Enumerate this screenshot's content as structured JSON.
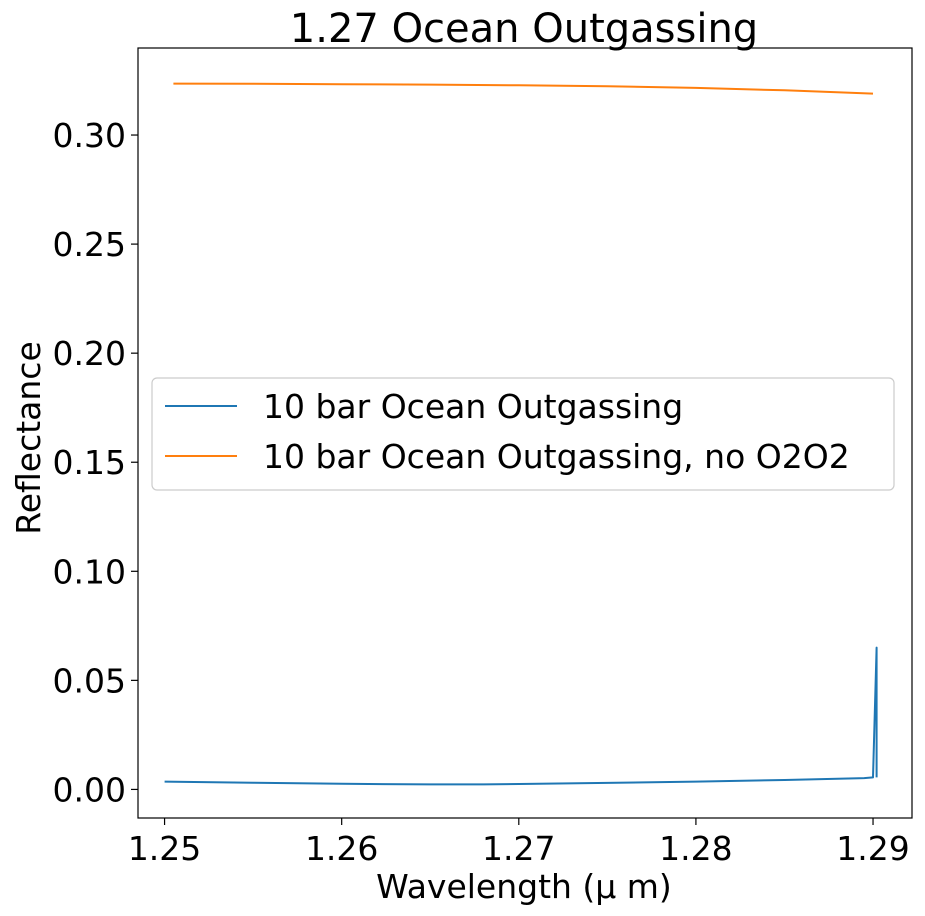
{
  "chart_data": {
    "type": "line",
    "title": "1.27 Ocean Outgassing",
    "xlabel": "Wavelength (μ m)",
    "ylabel": "Reflectance",
    "xlim": [
      1.2485,
      1.2922
    ],
    "ylim": [
      -0.0131,
      0.3399
    ],
    "xticks": [
      1.25,
      1.26,
      1.27,
      1.28,
      1.29
    ],
    "xtick_labels": [
      "1.25",
      "1.26",
      "1.27",
      "1.28",
      "1.29"
    ],
    "yticks": [
      0.0,
      0.05,
      0.1,
      0.15,
      0.2,
      0.25,
      0.3
    ],
    "ytick_labels": [
      "0.00",
      "0.05",
      "0.10",
      "0.15",
      "0.20",
      "0.25",
      "0.30"
    ],
    "grid": false,
    "legend_position": "center-left",
    "series": [
      {
        "name": "10 bar Ocean Outgassing",
        "color": "#1f77b4",
        "x": [
          1.25,
          1.255,
          1.26,
          1.265,
          1.268,
          1.27,
          1.275,
          1.28,
          1.285,
          1.2895,
          1.29,
          1.29,
          1.2902,
          1.2902
        ],
        "y": [
          0.0036,
          0.0031,
          0.0026,
          0.0023,
          0.0023,
          0.0025,
          0.003,
          0.0036,
          0.0043,
          0.0052,
          0.0055,
          0.0055,
          0.065,
          0.0055
        ]
      },
      {
        "name": "10 bar Ocean Outgassing, no O2O2",
        "color": "#ff7f0e",
        "x": [
          1.2505,
          1.255,
          1.26,
          1.265,
          1.27,
          1.275,
          1.28,
          1.285,
          1.29
        ],
        "y": [
          0.3236,
          0.3235,
          0.3233,
          0.3231,
          0.3228,
          0.3224,
          0.3216,
          0.3205,
          0.319
        ]
      }
    ]
  }
}
